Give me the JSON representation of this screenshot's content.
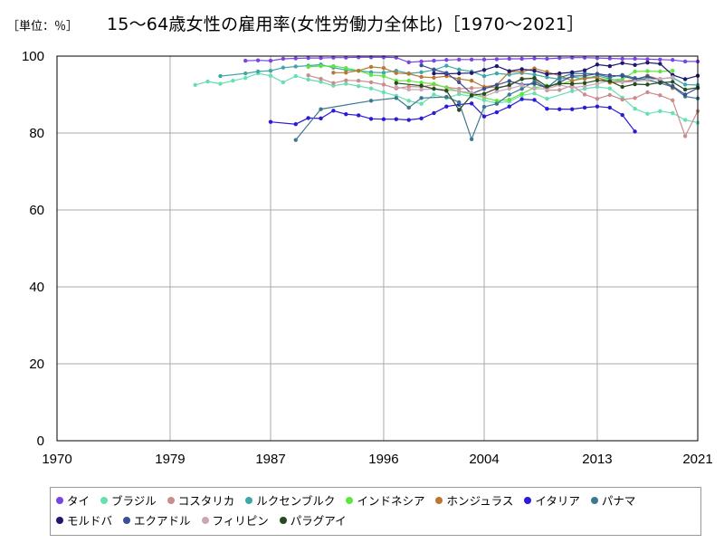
{
  "header": {
    "unit": "［単位：％］"
  },
  "chart_data": {
    "type": "line",
    "title": "15～64歳女性の雇用率(女性労働力全体比)［1970～2021］",
    "xlabel": "",
    "ylabel": "",
    "xlim": [
      1970,
      2021
    ],
    "ylim": [
      0,
      100
    ],
    "xticks": [
      1970,
      1979,
      1987,
      1996,
      2004,
      2013,
      2021
    ],
    "yticks": [
      0,
      20,
      40,
      60,
      80,
      100
    ],
    "grid": true,
    "legend_position": "bottom",
    "series": [
      {
        "name": "タイ",
        "color": "#7a45e6",
        "x": [
          1985,
          1986,
          1987,
          1988,
          1989,
          1990,
          1991,
          1992,
          1993,
          1994,
          1995,
          1996,
          1997,
          1998,
          1999,
          2000,
          2001,
          2002,
          2003,
          2004,
          2005,
          2006,
          2007,
          2008,
          2009,
          2010,
          2011,
          2012,
          2013,
          2014,
          2015,
          2016,
          2017,
          2018,
          2019,
          2020,
          2021
        ],
        "values": [
          98.8,
          98.9,
          98.8,
          99.3,
          99.4,
          99.5,
          99.5,
          99.6,
          99.6,
          99.7,
          99.7,
          99.7,
          99.6,
          98.4,
          98.6,
          98.8,
          99.0,
          99.1,
          99.1,
          99.1,
          99.2,
          99.3,
          99.3,
          99.4,
          99.3,
          99.5,
          99.6,
          99.6,
          99.5,
          99.4,
          99.3,
          99.3,
          99.2,
          99.1,
          99.0,
          98.6,
          98.6
        ]
      },
      {
        "name": "ブラジル",
        "color": "#66e0b0",
        "x": [
          1981,
          1982,
          1983,
          1984,
          1985,
          1986,
          1987,
          1988,
          1989,
          1990,
          1991,
          1992,
          1993,
          1994,
          1995,
          1996,
          1997,
          1998,
          1999,
          2000,
          2001,
          2002,
          2003,
          2004,
          2005,
          2006,
          2007,
          2008,
          2009,
          2011,
          2012,
          2013,
          2014,
          2015,
          2016,
          2017,
          2018,
          2019,
          2020,
          2021
        ],
        "values": [
          92.5,
          93.4,
          92.8,
          93.6,
          94.3,
          95.5,
          94.9,
          93.2,
          94.8,
          93.9,
          93.3,
          92.3,
          92.8,
          92.2,
          91.6,
          90.6,
          89.7,
          88.4,
          87.6,
          90.0,
          89.1,
          90.1,
          89.5,
          88.5,
          87.8,
          88.2,
          89.8,
          90.3,
          88.9,
          90.9,
          91.5,
          92.0,
          91.6,
          89.2,
          86.3,
          85.0,
          85.7,
          85.2,
          83.4,
          82.7
        ]
      },
      {
        "name": "コスタリカ",
        "color": "#cc8c8c",
        "x": [
          1990,
          1991,
          1992,
          1993,
          1994,
          1995,
          1996,
          1997,
          1998,
          1999,
          2000,
          2001,
          2002,
          2003,
          2004,
          2005,
          2006,
          2007,
          2008,
          2009,
          2010,
          2011,
          2012,
          2013,
          2014,
          2015,
          2016,
          2017,
          2018,
          2019,
          2020,
          2021
        ],
        "values": [
          95.0,
          94.1,
          93.0,
          93.7,
          93.6,
          93.2,
          92.6,
          91.6,
          92.1,
          92.0,
          92.6,
          91.9,
          91.5,
          91.7,
          91.8,
          91.9,
          92.2,
          94.2,
          94.1,
          91.1,
          91.2,
          92.4,
          90.0,
          88.9,
          89.9,
          88.7,
          89.1,
          90.6,
          89.8,
          88.5,
          79.2,
          85.7
        ]
      },
      {
        "name": "ルクセンブルク",
        "color": "#3fa7a7",
        "x": [
          1983,
          1985,
          1986,
          1987,
          1988,
          1989,
          1990,
          1991,
          1992,
          1993,
          1994,
          1995,
          1996,
          1997,
          1998,
          1999,
          2000,
          2001,
          2002,
          2003,
          2004,
          2005,
          2006,
          2007,
          2008,
          2009,
          2010,
          2011,
          2012,
          2013,
          2014,
          2015,
          2016,
          2017,
          2018,
          2019,
          2020,
          2021
        ],
        "values": [
          94.8,
          95.5,
          96.0,
          96.2,
          97.0,
          97.3,
          97.5,
          97.8,
          97.0,
          96.4,
          96.2,
          95.8,
          95.7,
          96.2,
          95.5,
          95.8,
          96.4,
          97.5,
          96.5,
          96.0,
          94.8,
          95.5,
          95.2,
          95.6,
          95.2,
          94.5,
          94.0,
          94.6,
          94.1,
          94.9,
          94.1,
          93.4,
          93.6,
          94.3,
          94.1,
          94.4,
          92.6,
          92.5
        ]
      },
      {
        "name": "インドネシア",
        "color": "#5ee640",
        "x": [
          1990,
          1991,
          1992,
          1993,
          1994,
          1995,
          1996,
          1997,
          1998,
          1999,
          2000,
          2001,
          2002,
          2003,
          2004,
          2005,
          2006,
          2007,
          2008,
          2009,
          2010,
          2011,
          2012,
          2013,
          2014,
          2015,
          2016,
          2017,
          2018,
          2019
        ],
        "values": [
          97.2,
          97.4,
          97.4,
          96.9,
          96.2,
          95.1,
          94.8,
          93.6,
          93.6,
          93.1,
          92.8,
          91.8,
          90.8,
          90.1,
          89.2,
          88.4,
          88.7,
          90.2,
          91.8,
          92.3,
          92.6,
          93.6,
          94.6,
          94.3,
          93.8,
          94.0,
          96.0,
          96.1,
          96.0,
          96.2
        ]
      },
      {
        "name": "ホンジュラス",
        "color": "#b87832",
        "x": [
          1992,
          1993,
          1994,
          1995,
          1996,
          1997,
          1998,
          1999,
          2000,
          2001,
          2002,
          2003,
          2004,
          2005,
          2006,
          2007,
          2008,
          2009,
          2010,
          2011,
          2012,
          2013,
          2014,
          2015,
          2016,
          2017,
          2018,
          2019
        ],
        "values": [
          95.7,
          95.7,
          96.2,
          97.2,
          96.9,
          95.6,
          95.4,
          94.6,
          94.4,
          94.8,
          94.1,
          93.6,
          92.0,
          92.5,
          95.9,
          95.9,
          96.8,
          95.9,
          94.9,
          93.6,
          94.2,
          94.5,
          93.1,
          93.3,
          93.9,
          94.9,
          93.9,
          91.7
        ]
      },
      {
        "name": "イタリア",
        "color": "#2b1ad6",
        "x": [
          1987,
          1989,
          1990,
          1991,
          1992,
          1993,
          1994,
          1995,
          1996,
          1997,
          1998,
          1999,
          2000,
          2001,
          2002,
          2003,
          2004,
          2005,
          2006,
          2007,
          2008,
          2009,
          2010,
          2011,
          2012,
          2013,
          2014,
          2015,
          2016
        ],
        "values": [
          82.9,
          82.3,
          83.9,
          83.8,
          85.8,
          84.9,
          84.6,
          83.7,
          83.6,
          83.6,
          83.4,
          83.8,
          85.2,
          86.9,
          87.4,
          87.7,
          84.3,
          85.4,
          86.9,
          88.8,
          88.6,
          86.3,
          86.2,
          86.2,
          86.6,
          86.9,
          86.6,
          84.7,
          80.4
        ]
      },
      {
        "name": "パナマ",
        "color": "#3d7891",
        "x": [
          1989,
          1991,
          1995,
          1997,
          1998,
          1999,
          2001,
          2002,
          2003,
          2004,
          2005,
          2006,
          2007,
          2008,
          2009,
          2010,
          2011,
          2012,
          2013,
          2014,
          2015,
          2016,
          2017,
          2018,
          2019,
          2020,
          2021
        ],
        "values": [
          78.2,
          86.2,
          88.4,
          89.1,
          86.6,
          89.1,
          89.4,
          88.0,
          78.4,
          86.8,
          87.6,
          90.0,
          91.5,
          93.4,
          91.8,
          94.4,
          95.4,
          95.5,
          95.3,
          94.5,
          95.1,
          94.3,
          93.8,
          93.0,
          92.0,
          89.5,
          89.0
        ]
      },
      {
        "name": "モルドバ",
        "color": "#1f1670",
        "x": [
          2000,
          2001,
          2002,
          2003,
          2004,
          2005,
          2006,
          2007,
          2008,
          2009,
          2010,
          2011,
          2012,
          2013,
          2014,
          2015,
          2016,
          2017,
          2018,
          2019,
          2020,
          2021
        ],
        "values": [
          95.5,
          95.4,
          95.5,
          95.6,
          96.4,
          97.4,
          96.1,
          96.6,
          96.2,
          95.3,
          95.5,
          95.8,
          96.3,
          97.8,
          97.4,
          98.2,
          97.7,
          98.3,
          98.0,
          95.1,
          94.0,
          94.9
        ]
      },
      {
        "name": "エクアドル",
        "color": "#3a4f96",
        "x": [
          1999,
          2000,
          2001,
          2002,
          2003,
          2004,
          2005,
          2006,
          2007,
          2008,
          2009,
          2010,
          2011,
          2012,
          2013,
          2014,
          2015,
          2016,
          2017,
          2018,
          2019,
          2020,
          2021
        ],
        "values": [
          97.6,
          96.5,
          95.6,
          93.2,
          90.2,
          91.5,
          92.5,
          93.5,
          92.6,
          92.8,
          91.8,
          93.2,
          94.8,
          94.9,
          95.4,
          95.0,
          94.8,
          94.0,
          94.7,
          93.7,
          92.2,
          90.0,
          91.7
        ]
      },
      {
        "name": "フィリピン",
        "color": "#c8a8b8",
        "x": [
          1997,
          1998,
          1999,
          2000,
          2001,
          2002,
          2003,
          2004,
          2005,
          2006,
          2007,
          2008,
          2009,
          2010,
          2011,
          2012,
          2013,
          2014,
          2015,
          2016,
          2017,
          2018,
          2019
        ],
        "values": [
          92.0,
          91.3,
          91.3,
          91.5,
          91.2,
          90.9,
          90.5,
          89.5,
          90.8,
          91.5,
          92.4,
          91.5,
          91.5,
          92.5,
          91.8,
          92.2,
          92.8,
          93.6,
          93.2,
          93.4,
          93.8,
          94.1,
          94.5
        ]
      },
      {
        "name": "パラグアイ",
        "color": "#244a1e",
        "x": [
          1997,
          1999,
          2000,
          2001,
          2002,
          2003,
          2004,
          2005,
          2006,
          2007,
          2008,
          2009,
          2010,
          2011,
          2012,
          2013,
          2014,
          2015,
          2016,
          2017,
          2018,
          2019,
          2020,
          2021
        ],
        "values": [
          93.0,
          92.3,
          91.5,
          91.0,
          86.0,
          89.8,
          90.2,
          91.6,
          92.5,
          94.0,
          94.3,
          92.1,
          92.9,
          92.8,
          93.0,
          93.7,
          93.5,
          92.0,
          92.7,
          92.6,
          93.1,
          93.3,
          91.3,
          91.8
        ]
      }
    ]
  }
}
